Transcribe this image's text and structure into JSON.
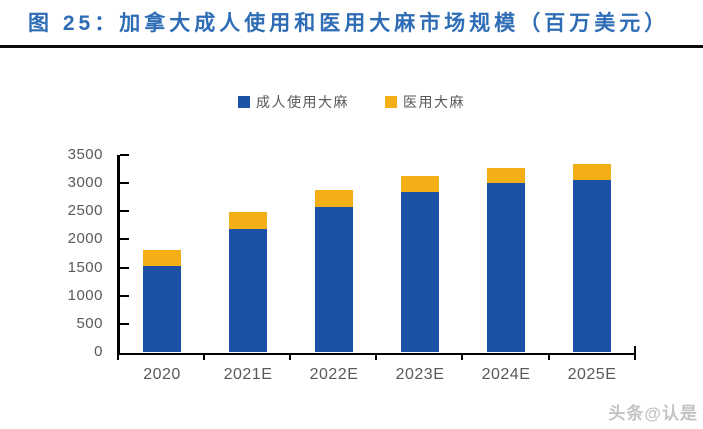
{
  "figure_header": {
    "title": "图 25：加拿大成人使用和医用大麻市场规模（百万美元）",
    "title_color": "#2E6DB5"
  },
  "watermark": {
    "text": "头条@认是"
  },
  "chart_data": {
    "type": "bar",
    "stacked": true,
    "title": "加拿大成人使用和医用大麻市场规模（百万美元）",
    "unit": "百万美元",
    "categories": [
      "2020",
      "2021E",
      "2022E",
      "2023E",
      "2024E",
      "2025E"
    ],
    "series": [
      {
        "name": "成人使用大麻",
        "color": "#1D51A5",
        "values": [
          1520,
          2180,
          2580,
          2850,
          3000,
          3050
        ]
      },
      {
        "name": "医用大麻",
        "color": "#F4AF16",
        "values": [
          300,
          300,
          300,
          285,
          275,
          285
        ]
      }
    ],
    "totals": [
      1820,
      2480,
      2880,
      3135,
      3275,
      3335
    ],
    "ylim": [
      0,
      3500
    ],
    "ytick_interval": 500,
    "yticks": [
      3500,
      3000,
      2500,
      2000,
      1500,
      1000,
      500,
      0
    ],
    "xlabel": "",
    "ylabel": "",
    "grid": false,
    "legend_position": "top-center",
    "axis_color": "#000000",
    "tick_label_color": "#595959"
  }
}
